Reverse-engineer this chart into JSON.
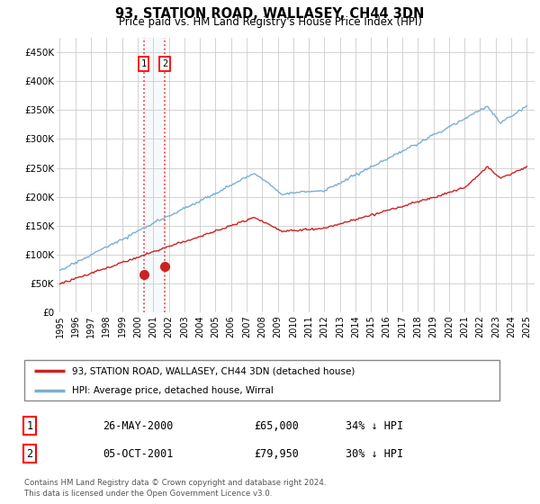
{
  "title": "93, STATION ROAD, WALLASEY, CH44 3DN",
  "subtitle": "Price paid vs. HM Land Registry's House Price Index (HPI)",
  "ylabel_ticks": [
    "£0",
    "£50K",
    "£100K",
    "£150K",
    "£200K",
    "£250K",
    "£300K",
    "£350K",
    "£400K",
    "£450K"
  ],
  "ytick_values": [
    0,
    50000,
    100000,
    150000,
    200000,
    250000,
    300000,
    350000,
    400000,
    450000
  ],
  "ylim": [
    0,
    475000
  ],
  "xlim_start": 1994.8,
  "xlim_end": 2025.5,
  "hpi_color": "#7bafd4",
  "price_color": "#cc2222",
  "sale1_date": 2000.38,
  "sale1_price": 65000,
  "sale2_date": 2001.75,
  "sale2_price": 79950,
  "legend_label1": "93, STATION ROAD, WALLASEY, CH44 3DN (detached house)",
  "legend_label2": "HPI: Average price, detached house, Wirral",
  "table_row1_num": "1",
  "table_row1_date": "26-MAY-2000",
  "table_row1_price": "£65,000",
  "table_row1_hpi": "34% ↓ HPI",
  "table_row2_num": "2",
  "table_row2_date": "05-OCT-2001",
  "table_row2_price": "£79,950",
  "table_row2_hpi": "30% ↓ HPI",
  "footer": "Contains HM Land Registry data © Crown copyright and database right 2024.\nThis data is licensed under the Open Government Licence v3.0.",
  "xtick_years": [
    1995,
    1996,
    1997,
    1998,
    1999,
    2000,
    2001,
    2002,
    2003,
    2004,
    2005,
    2006,
    2007,
    2008,
    2009,
    2010,
    2011,
    2012,
    2013,
    2014,
    2015,
    2016,
    2017,
    2018,
    2019,
    2020,
    2021,
    2022,
    2023,
    2024,
    2025
  ]
}
